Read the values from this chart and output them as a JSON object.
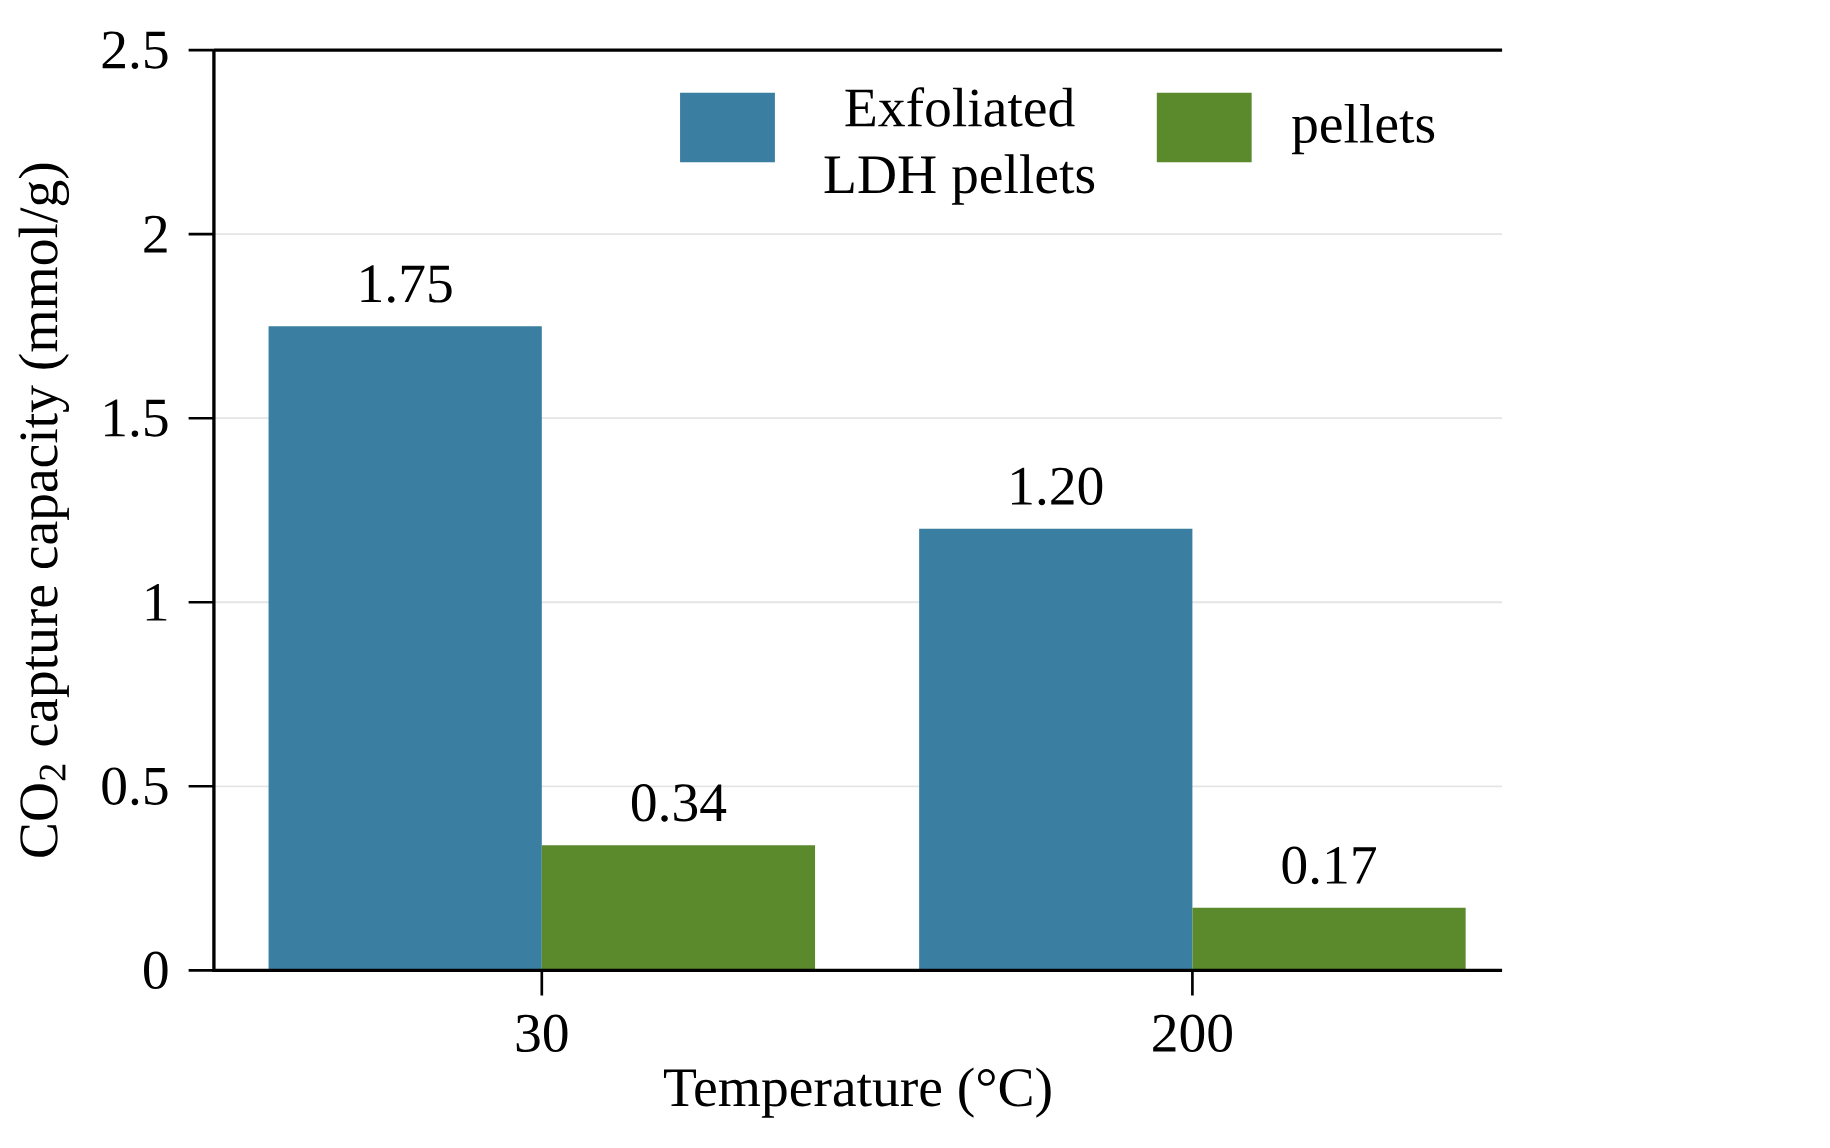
{
  "chart_data": {
    "type": "bar",
    "xlabel": "Temperature (°C)",
    "ylabel": "CO$_{2}$ capture capacity (mmol/g)",
    "categories": [
      "30",
      "200"
    ],
    "series": [
      {
        "name": "Exfoliated LDH pellets",
        "color": "#3a7ea1",
        "values": [
          1.75,
          1.2
        ],
        "value_labels": [
          "1.75",
          "1.20"
        ]
      },
      {
        "name": "pellets",
        "color": "#5a8a2b",
        "values": [
          0.34,
          0.17
        ],
        "value_labels": [
          "0.34",
          "0.17"
        ]
      }
    ],
    "ylim": [
      0,
      2.5
    ],
    "yticks": [
      0,
      0.5,
      1,
      1.5,
      2,
      2.5
    ],
    "grid": "y",
    "legend": "top right"
  }
}
